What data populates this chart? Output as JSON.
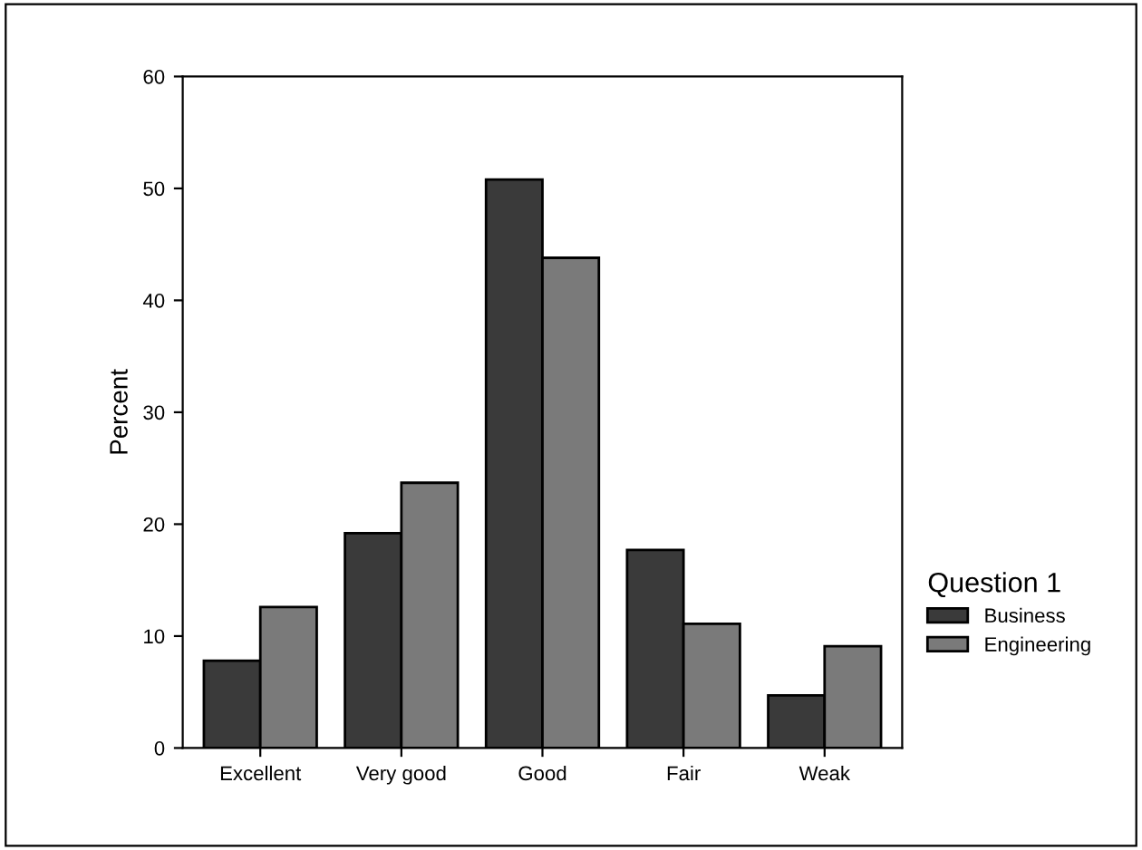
{
  "chart_data": {
    "type": "bar",
    "ylabel": "Percent",
    "legend_title": "Question 1",
    "categories": [
      "Excellent",
      "Very good",
      "Good",
      "Fair",
      "Weak"
    ],
    "series": [
      {
        "name": "Business",
        "color": "#3a3a3a",
        "values": [
          7.8,
          19.2,
          50.8,
          17.7,
          4.7
        ]
      },
      {
        "name": "Engineering",
        "color": "#7a7a7a",
        "values": [
          12.6,
          23.7,
          43.8,
          11.1,
          9.1
        ]
      }
    ],
    "ylim": [
      0,
      60
    ],
    "yticks": [
      0,
      10,
      20,
      30,
      40,
      50,
      60
    ],
    "grid": false,
    "legend": "right"
  }
}
